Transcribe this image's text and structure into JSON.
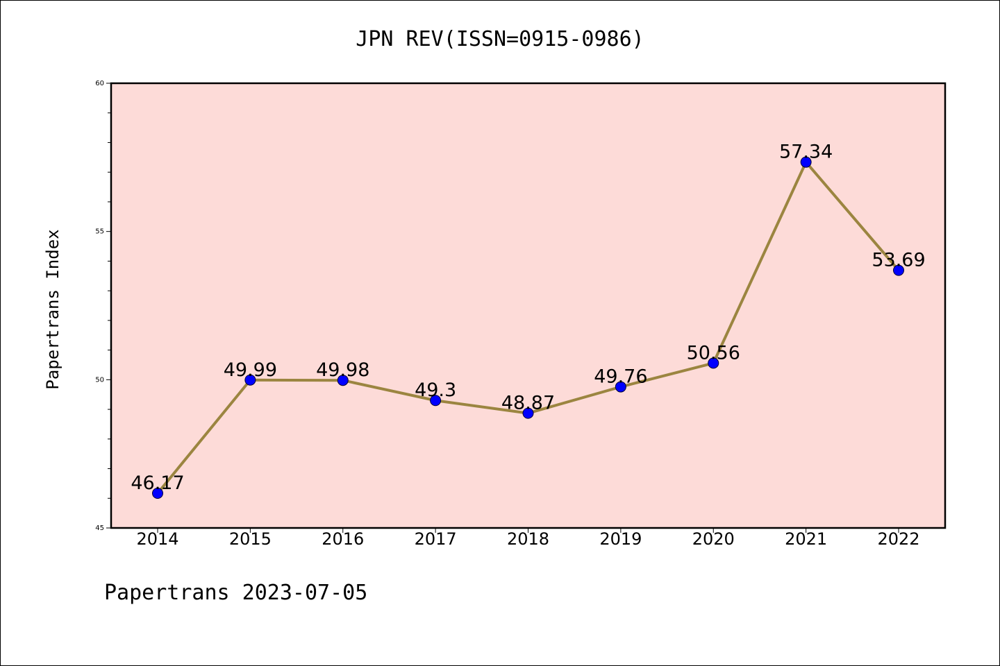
{
  "chart_data": {
    "type": "line",
    "title": "JPN REV(ISSN=0915-0986)",
    "xlabel": "",
    "ylabel": "Papertrans Index",
    "footer": "Papertrans 2023-07-05",
    "x": [
      "2014",
      "2015",
      "2016",
      "2017",
      "2018",
      "2019",
      "2020",
      "2021",
      "2022"
    ],
    "series": [
      {
        "values": [
          46.17,
          49.99,
          49.98,
          49.3,
          48.87,
          49.76,
          50.56,
          57.34,
          53.69
        ],
        "labels": [
          "46.17",
          "49.99",
          "49.98",
          "49.3",
          "48.87",
          "49.76",
          "50.56",
          "57.34",
          "53.69"
        ]
      }
    ],
    "ylim": [
      45,
      60
    ],
    "yticks": [
      "45",
      "50",
      "55",
      "60"
    ],
    "grid": false,
    "legend": "none",
    "colors": {
      "plot_background": "#fddbd8",
      "line": "#9b8540",
      "marker": "#0000ff"
    }
  }
}
